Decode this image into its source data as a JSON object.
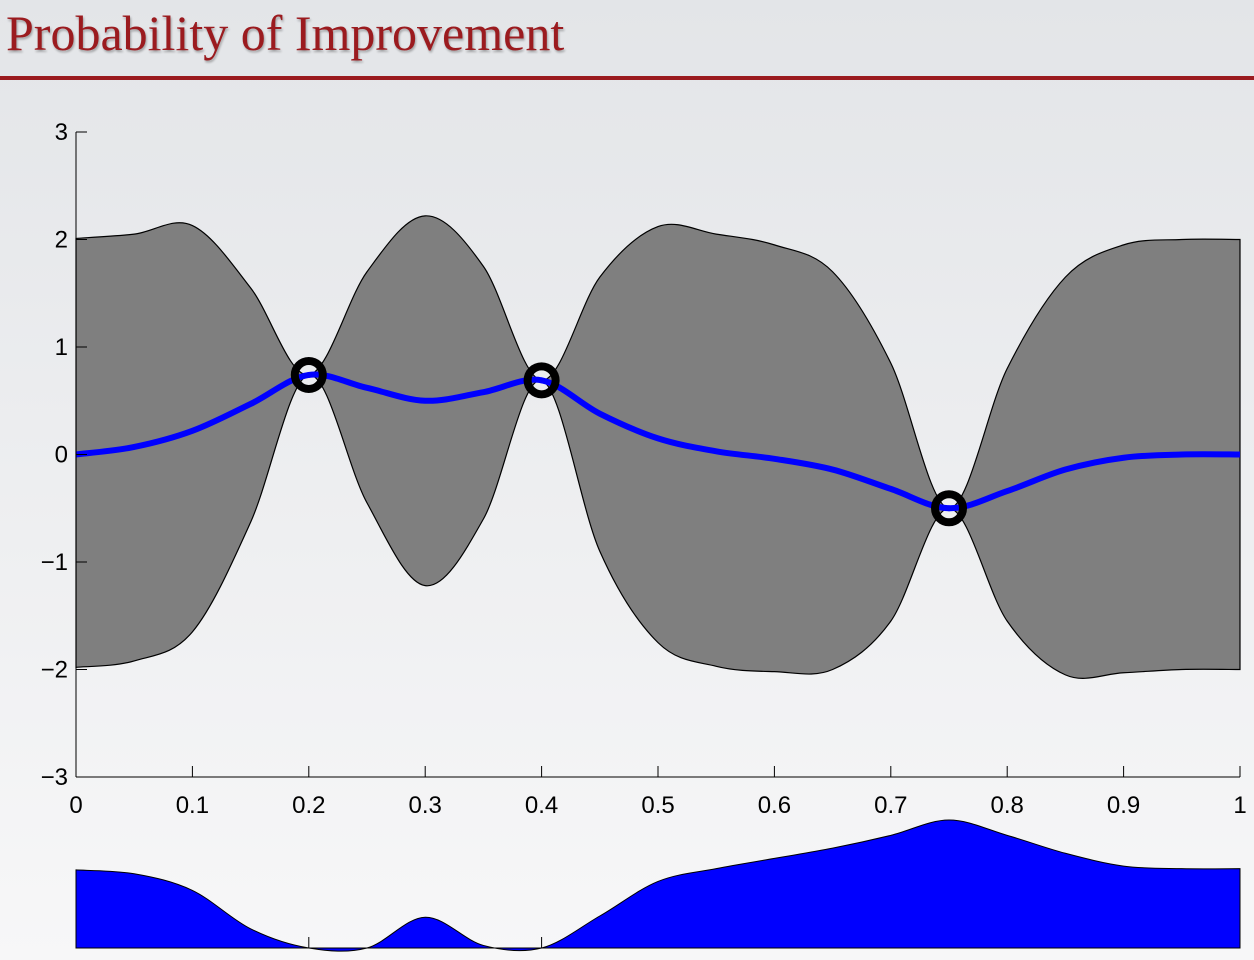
{
  "title": "Probability of Improvement",
  "chart_data": [
    {
      "type": "gp",
      "x": [
        0,
        0.05,
        0.1,
        0.15,
        0.2,
        0.25,
        0.3,
        0.35,
        0.4,
        0.45,
        0.5,
        0.55,
        0.6,
        0.65,
        0.7,
        0.75,
        0.8,
        0.85,
        0.9,
        0.95,
        1
      ],
      "mean": {
        "color": "#0000ff",
        "values": [
          0.0,
          0.07,
          0.22,
          0.47,
          0.74,
          0.62,
          0.5,
          0.58,
          0.69,
          0.38,
          0.15,
          0.03,
          -0.04,
          -0.14,
          -0.32,
          -0.5,
          -0.34,
          -0.14,
          -0.03,
          0.0,
          0.0
        ]
      },
      "band": {
        "color": "#7f7f7f",
        "upper": [
          2.01,
          2.05,
          2.13,
          1.55,
          0.74,
          1.7,
          2.22,
          1.75,
          0.69,
          1.65,
          2.12,
          2.05,
          1.95,
          1.7,
          0.85,
          -0.5,
          0.8,
          1.65,
          1.95,
          2.0,
          2.0
        ],
        "lower": [
          -1.98,
          -1.92,
          -1.65,
          -0.63,
          0.74,
          -0.45,
          -1.22,
          -0.6,
          0.69,
          -0.9,
          -1.75,
          -1.97,
          -2.02,
          -2.0,
          -1.55,
          -0.5,
          -1.55,
          -2.05,
          -2.03,
          -2.0,
          -2.0
        ]
      },
      "observations": {
        "color": "#000000",
        "x": [
          0.2,
          0.4,
          0.75
        ],
        "y": [
          0.74,
          0.69,
          -0.5
        ]
      },
      "xlim": [
        0,
        1
      ],
      "ylim": [
        -3,
        3
      ],
      "xticks": [
        0,
        0.1,
        0.2,
        0.3,
        0.4,
        0.5,
        0.6,
        0.7,
        0.8,
        0.9,
        1
      ],
      "yticks": [
        {
          "value": -3,
          "label": "−3"
        },
        {
          "value": -2,
          "label": "−2"
        },
        {
          "value": -1,
          "label": "−1"
        },
        0,
        1,
        2,
        3
      ]
    },
    {
      "type": "area",
      "x": [
        0,
        0.05,
        0.1,
        0.15,
        0.2,
        0.25,
        0.3,
        0.35,
        0.4,
        0.45,
        0.5,
        0.55,
        0.6,
        0.65,
        0.7,
        0.75,
        0.8,
        0.85,
        0.9,
        0.95,
        1
      ],
      "values": [
        0.61,
        0.58,
        0.45,
        0.15,
        0,
        0,
        0.24,
        0.02,
        0,
        0.25,
        0.52,
        0.62,
        0.7,
        0.78,
        0.88,
        1.0,
        0.88,
        0.74,
        0.64,
        0.62,
        0.62
      ],
      "color": "#0000ff",
      "xlim": [
        0,
        1
      ],
      "ylim": [
        0,
        1
      ],
      "xticks": [
        0.2,
        0.4
      ]
    }
  ]
}
